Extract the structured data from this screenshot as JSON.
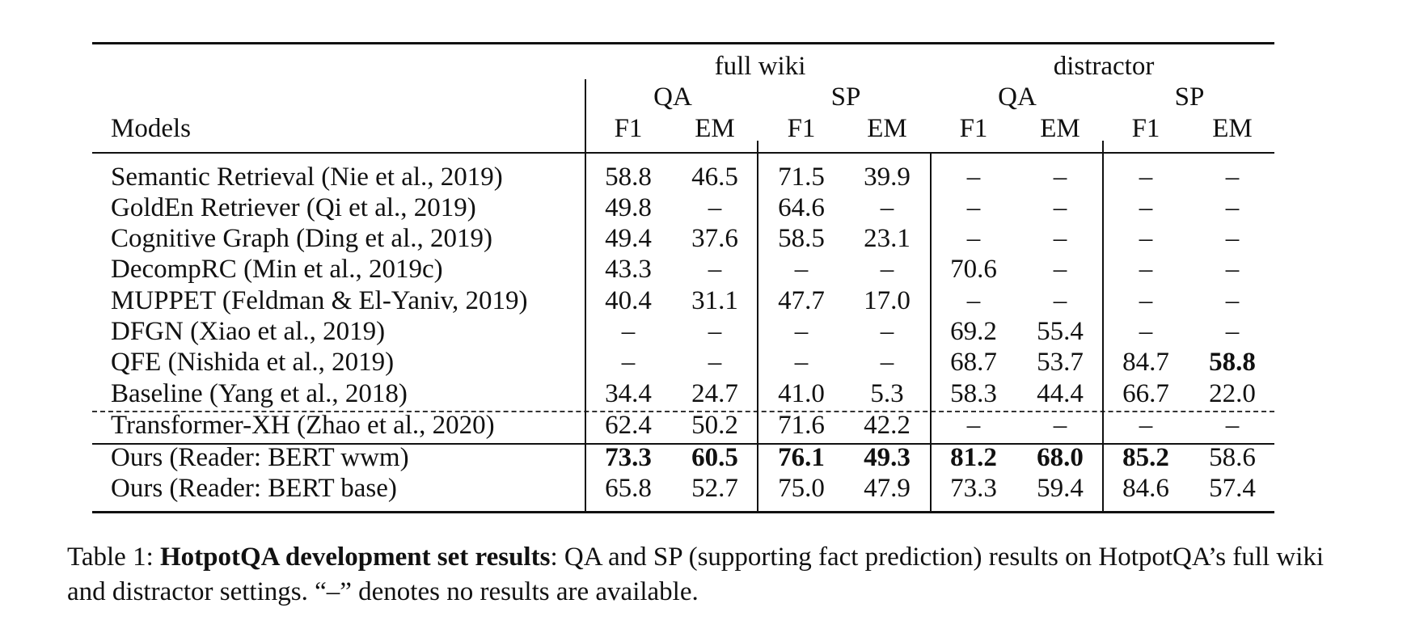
{
  "table": {
    "group_headers": [
      "full wiki",
      "distractor"
    ],
    "task_headers": [
      "QA",
      "SP",
      "QA",
      "SP"
    ],
    "models_header": "Models",
    "metric_headers": [
      "F1",
      "EM",
      "F1",
      "EM",
      "F1",
      "EM",
      "F1",
      "EM"
    ],
    "rows": [
      {
        "model": "Semantic Retrieval (Nie et al., 2019)",
        "values": [
          "58.8",
          "46.5",
          "71.5",
          "39.9",
          "–",
          "–",
          "–",
          "–"
        ],
        "bold": []
      },
      {
        "model": "GoldEn Retriever (Qi et al., 2019)",
        "values": [
          "49.8",
          "–",
          "64.6",
          "–",
          "–",
          "–",
          "–",
          "–"
        ],
        "bold": []
      },
      {
        "model": "Cognitive Graph (Ding et al., 2019)",
        "values": [
          "49.4",
          "37.6",
          "58.5",
          "23.1",
          "–",
          "–",
          "–",
          "–"
        ],
        "bold": []
      },
      {
        "model": "DecompRC (Min et al., 2019c)",
        "values": [
          "43.3",
          "–",
          "–",
          "–",
          "70.6",
          "–",
          "–",
          "–"
        ],
        "bold": []
      },
      {
        "model": "MUPPET (Feldman & El-Yaniv, 2019)",
        "values": [
          "40.4",
          "31.1",
          "47.7",
          "17.0",
          "–",
          "–",
          "–",
          "–"
        ],
        "bold": []
      },
      {
        "model": "DFGN (Xiao et al., 2019)",
        "values": [
          "–",
          "–",
          "–",
          "–",
          "69.2",
          "55.4",
          "–",
          "–"
        ],
        "bold": []
      },
      {
        "model": "QFE (Nishida et al., 2019)",
        "values": [
          "–",
          "–",
          "–",
          "–",
          "68.7",
          "53.7",
          "84.7",
          "58.8"
        ],
        "bold": [
          7
        ]
      },
      {
        "model": "Baseline (Yang et al., 2018)",
        "values": [
          "34.4",
          "24.7",
          "41.0",
          "5.3",
          "58.3",
          "44.4",
          "66.7",
          "22.0"
        ],
        "bold": []
      },
      {
        "model": "Transformer-XH (Zhao et al., 2020)",
        "values": [
          "62.4",
          "50.2",
          "71.6",
          "42.2",
          "–",
          "–",
          "–",
          "–"
        ],
        "bold": []
      },
      {
        "model": "Ours (Reader: BERT wwm)",
        "values": [
          "73.3",
          "60.5",
          "76.1",
          "49.3",
          "81.2",
          "68.0",
          "85.2",
          "58.6"
        ],
        "bold": [
          0,
          1,
          2,
          3,
          4,
          5,
          6
        ]
      },
      {
        "model": "Ours (Reader: BERT base)",
        "values": [
          "65.8",
          "52.7",
          "75.0",
          "47.9",
          "73.3",
          "59.4",
          "84.6",
          "57.4"
        ],
        "bold": []
      }
    ]
  },
  "caption": {
    "prefix": "Table 1: ",
    "label": "HotpotQA development set results",
    "text": ": QA and SP (supporting fact prediction) results on HotpotQA’s full wiki and distractor settings. “–” denotes no results are available."
  }
}
